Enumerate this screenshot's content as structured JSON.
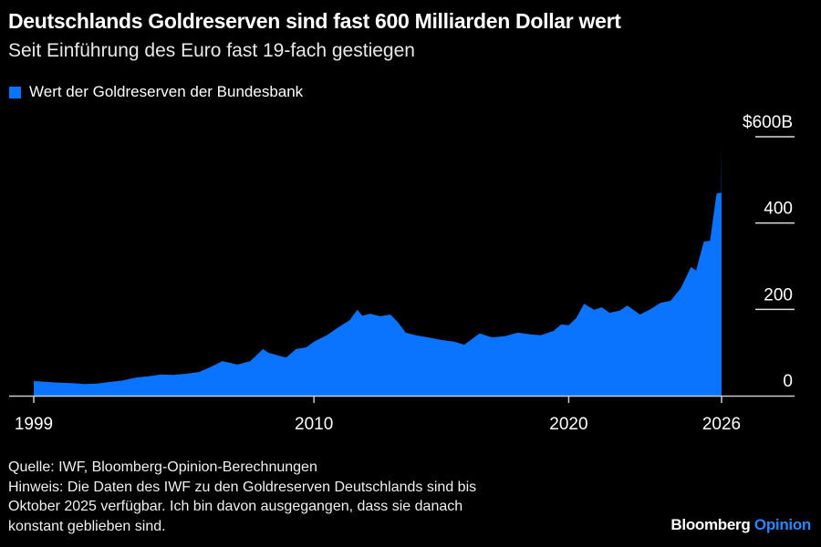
{
  "header": {
    "title": "Deutschlands Goldreserven sind fast 600 Milliarden Dollar wert",
    "subtitle": "Seit Einführung des Euro fast 19-fach gestiegen"
  },
  "footer": {
    "source": "Quelle: IWF, Bloomberg-Opinion-Berechnungen",
    "note_lines": [
      "Hinweis: Die Daten des IWF zu den Goldreserven Deutschlands sind bis",
      "Oktober 2025 verfügbar. Ich bin davon ausgegangen, dass sie danach",
      "konstant geblieben sind."
    ],
    "brand_main": "Bloomberg",
    "brand_accent": "Opinion"
  },
  "colors": {
    "series": "#0a74ff",
    "background": "#000000",
    "brand_accent": "#2a86ff"
  },
  "chart_data": {
    "type": "area",
    "title": "Deutschlands Goldreserven sind fast 600 Milliarden Dollar wert",
    "legend": [
      "Wert der Goldreserven der Bundesbank"
    ],
    "legend_position": "top-left",
    "xlabel": "",
    "ylabel": "",
    "xlim": [
      1999,
      2026
    ],
    "ylim": [
      0,
      600
    ],
    "x_ticks": [
      1999,
      2010,
      2020,
      2026
    ],
    "x_tick_labels": [
      "1999",
      "2010",
      "2020",
      "2026"
    ],
    "y_ticks": [
      0,
      200,
      400,
      600
    ],
    "y_tick_labels": [
      "0",
      "200",
      "400",
      "$600B"
    ],
    "series": [
      {
        "name": "Wert der Goldreserven der Bundesbank",
        "x": [
          1999.0,
          1999.5,
          2000,
          2000.5,
          2001,
          2001.5,
          2002,
          2002.5,
          2003,
          2003.5,
          2004,
          2004.5,
          2005,
          2005.5,
          2006,
          2006.4,
          2007,
          2007.5,
          2008,
          2008.2,
          2008.6,
          2008.9,
          2009.3,
          2009.7,
          2010,
          2010.5,
          2011,
          2011.4,
          2011.7,
          2011.9,
          2012.2,
          2012.6,
          2013,
          2013.3,
          2013.6,
          2014,
          2014.5,
          2015,
          2015.5,
          2015.9,
          2016.5,
          2017,
          2017.5,
          2018,
          2018.5,
          2018.9,
          2019.4,
          2019.7,
          2020,
          2020.3,
          2020.6,
          2021,
          2021.3,
          2021.6,
          2022,
          2022.3,
          2022.8,
          2023.2,
          2023.6,
          2024,
          2024.4,
          2024.8,
          2025,
          2025.3,
          2025.55,
          2025.8,
          2025.83,
          2025.99,
          2026.0
        ],
        "values": [
          34,
          32,
          30,
          29,
          27,
          28,
          32,
          35,
          42,
          45,
          49,
          48,
          51,
          55,
          68,
          80,
          72,
          80,
          108,
          100,
          93,
          88,
          108,
          112,
          125,
          140,
          160,
          175,
          199,
          185,
          190,
          184,
          188,
          170,
          146,
          140,
          135,
          129,
          125,
          118,
          144,
          135,
          138,
          146,
          142,
          140,
          150,
          165,
          163,
          180,
          213,
          199,
          205,
          192,
          197,
          209,
          188,
          200,
          215,
          220,
          249,
          298,
          290,
          357,
          359,
          467,
          469,
          470,
          595
        ]
      }
    ]
  }
}
